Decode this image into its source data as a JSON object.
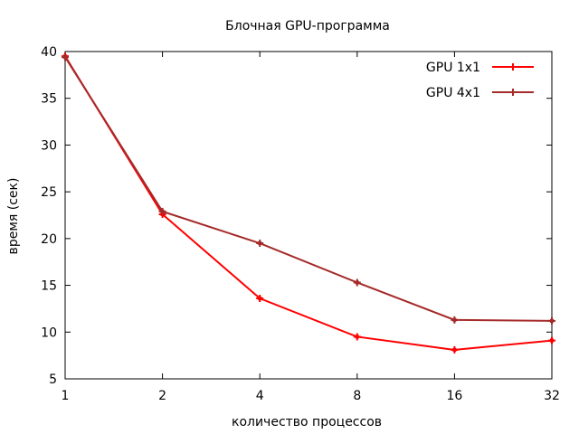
{
  "chart_data": {
    "type": "line",
    "title": "Блочная GPU-программа",
    "xlabel": "количество процессов",
    "ylabel": "время (сек)",
    "x_scale": "log2",
    "x": [
      1,
      2,
      4,
      8,
      16,
      32
    ],
    "x_tick_labels": [
      "1",
      "2",
      "4",
      "8",
      "16",
      "32"
    ],
    "ylim": [
      5,
      40
    ],
    "y_ticks": [
      5,
      10,
      15,
      20,
      25,
      30,
      35,
      40
    ],
    "y_tick_labels": [
      "5",
      "10",
      "15",
      "20",
      "25",
      "30",
      "35",
      "40"
    ],
    "grid": false,
    "legend_position": "top-right",
    "series": [
      {
        "name": "GPU 1x1",
        "color": "#ff0000",
        "values": [
          39.5,
          22.6,
          13.6,
          9.5,
          8.1,
          9.1
        ]
      },
      {
        "name": "GPU 4x1",
        "color": "#a52a2a",
        "values": [
          39.4,
          22.9,
          19.5,
          15.3,
          11.3,
          11.2
        ]
      }
    ]
  }
}
